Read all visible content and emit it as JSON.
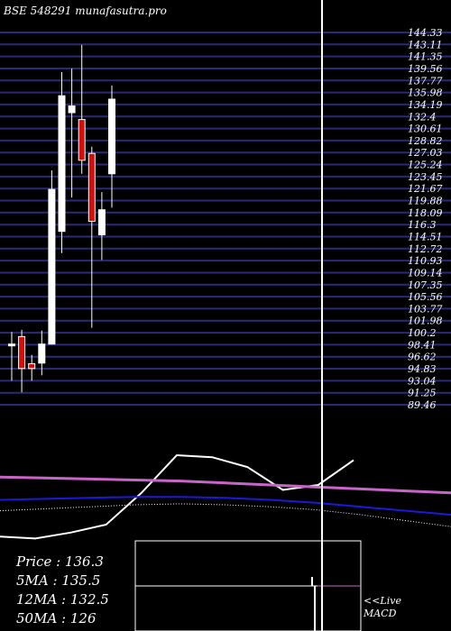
{
  "header": {
    "title": "BSE 548291 munafasutra.pro"
  },
  "chart_data": {
    "type": "candlestick",
    "title": "BSE 548291 munafasutra.pro",
    "price_axis_labels": [
      "144.33",
      "143.11",
      "141.35",
      "139.56",
      "137.77",
      "135.98",
      "134.19",
      "132.4",
      "130.61",
      "128.82",
      "127.03",
      "125.24",
      "123.45",
      "121.67",
      "119.88",
      "118.09",
      "116.3",
      "114.51",
      "112.72",
      "110.93",
      "109.14",
      "107.35",
      "105.56",
      "103.77",
      "101.98",
      "100.2",
      "98.41",
      "96.62",
      "94.83",
      "93.04",
      "91.25",
      "89.46"
    ],
    "ylim": [
      89.46,
      144.33
    ],
    "candles": [
      {
        "open": 98.4,
        "high": 100.2,
        "low": 93.0,
        "close": 98.4,
        "color": "white"
      },
      {
        "open": 99.5,
        "high": 100.5,
        "low": 91.3,
        "close": 94.8,
        "color": "red"
      },
      {
        "open": 95.5,
        "high": 96.8,
        "low": 93.0,
        "close": 94.8,
        "color": "red"
      },
      {
        "open": 95.6,
        "high": 100.4,
        "low": 93.8,
        "close": 98.4,
        "color": "white"
      },
      {
        "open": 98.4,
        "high": 124.0,
        "low": 98.4,
        "close": 121.2,
        "color": "white"
      },
      {
        "open": 115.0,
        "high": 138.5,
        "low": 111.8,
        "close": 135.0,
        "color": "white"
      },
      {
        "open": 132.5,
        "high": 139.0,
        "low": 120.0,
        "close": 133.5,
        "color": "white"
      },
      {
        "open": 131.5,
        "high": 142.5,
        "low": 123.5,
        "close": 125.5,
        "color": "red"
      },
      {
        "open": 126.5,
        "high": 127.5,
        "low": 100.8,
        "close": 116.5,
        "color": "red"
      },
      {
        "open": 118.2,
        "high": 120.8,
        "low": 110.8,
        "close": 114.5,
        "color": "white"
      },
      {
        "open": 123.5,
        "high": 136.5,
        "low": 118.5,
        "close": 134.5,
        "color": "white"
      }
    ],
    "indicator_lines": [
      {
        "name": "price",
        "color": "#ffffff",
        "values": [
          18,
          16,
          22,
          30,
          62,
          100,
          98,
          88,
          65,
          70,
          95
        ]
      },
      {
        "name": "ma_magenta",
        "color": "#c965c9",
        "values": [
          78,
          77,
          76,
          75,
          74,
          72,
          70,
          68,
          66,
          64,
          62
        ]
      },
      {
        "name": "ma_blue",
        "color": "#1a1adb",
        "values": [
          55,
          56,
          57,
          58,
          58,
          57,
          55,
          52,
          48,
          44,
          40
        ]
      },
      {
        "name": "ma_dotted",
        "color": "#ffffff",
        "values": [
          44,
          46,
          48,
          50,
          51,
          50,
          48,
          45,
          40,
          34,
          28
        ]
      }
    ],
    "macd_histogram": [
      {
        "value": 1
      },
      {
        "value": -1
      }
    ],
    "marker_series_index": 10
  },
  "info": {
    "price": "Price   : 136.3",
    "ma5": "5MA : 135.5",
    "ma12": "12MA : 132.5",
    "ma50": "50MA : 126"
  },
  "live": {
    "line1": "<<Live",
    "line2": "MACD"
  },
  "colors": {
    "background": "#000000",
    "grid": "#2a2a78",
    "up": "#ffffff",
    "down": "#cc1111",
    "magenta": "#c965c9",
    "blue": "#1a1adb"
  }
}
